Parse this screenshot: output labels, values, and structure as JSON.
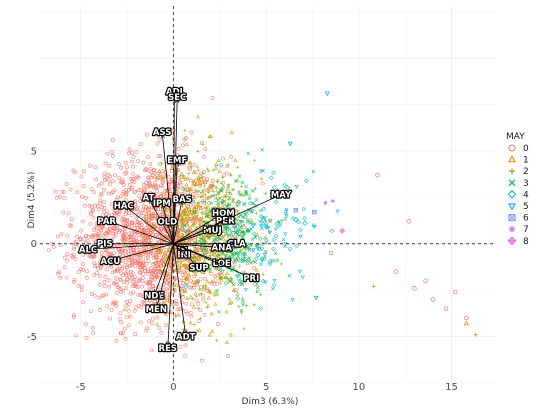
{
  "chart_data": {
    "type": "scatter",
    "subtype": "PCA biplot (individuals + variable loading arrows)",
    "xlabel": "Dim3 (6.3%)",
    "ylabel": "Dim4 (5.2%)",
    "xlim": [
      -7.2,
      17.4
    ],
    "ylim": [
      -7.5,
      12.8
    ],
    "x_ticks": [
      -5,
      0,
      5,
      10,
      15
    ],
    "y_ticks": [
      -5,
      0,
      5
    ],
    "grid": true,
    "zero_lines": "dashed",
    "legend_position": "right",
    "legend": {
      "title": "MAY",
      "entries": [
        {
          "label": "0",
          "color": "#F8766D",
          "shape": "circle"
        },
        {
          "label": "1",
          "color": "#CD9600",
          "shape": "triangle-up"
        },
        {
          "label": "2",
          "color": "#7CAE00",
          "shape": "plus"
        },
        {
          "label": "3",
          "color": "#00BE67",
          "shape": "cross"
        },
        {
          "label": "4",
          "color": "#00BFC4",
          "shape": "diamond"
        },
        {
          "label": "5",
          "color": "#00A9FF",
          "shape": "triangle-down"
        },
        {
          "label": "6",
          "color": "#8494FF",
          "shape": "square-cross"
        },
        {
          "label": "7",
          "color": "#C77CFF",
          "shape": "star"
        },
        {
          "label": "8",
          "color": "#FF61CC",
          "shape": "diamond-plus"
        }
      ]
    },
    "point_clouds": [
      {
        "group": "0",
        "center": [
          -1.2,
          0.3
        ],
        "sd": [
          2.0,
          2.2
        ],
        "count": 1500
      },
      {
        "group": "1",
        "center": [
          1.2,
          0.5
        ],
        "sd": [
          1.3,
          2.2
        ],
        "count": 380
      },
      {
        "group": "2",
        "center": [
          2.2,
          0.6
        ],
        "sd": [
          1.4,
          2.0
        ],
        "count": 360
      },
      {
        "group": "3",
        "center": [
          3.2,
          0.4
        ],
        "sd": [
          1.2,
          1.6
        ],
        "count": 220
      },
      {
        "group": "4",
        "center": [
          4.6,
          0.4
        ],
        "sd": [
          1.3,
          1.6
        ],
        "count": 70
      },
      {
        "group": "5",
        "center": [
          5.5,
          0.5
        ],
        "sd": [
          1.5,
          1.7
        ],
        "count": 30
      }
    ],
    "outlier_points": [
      {
        "group": "0",
        "x": 12.0,
        "y": -1.5
      },
      {
        "group": "0",
        "x": 13.0,
        "y": -2.4
      },
      {
        "group": "0",
        "x": 13.6,
        "y": -2.0
      },
      {
        "group": "0",
        "x": 14.0,
        "y": -3.0
      },
      {
        "group": "0",
        "x": 14.7,
        "y": -3.5
      },
      {
        "group": "0",
        "x": 15.2,
        "y": -2.6
      },
      {
        "group": "0",
        "x": 15.8,
        "y": -4.0
      },
      {
        "group": "0",
        "x": 12.7,
        "y": 1.2
      },
      {
        "group": "0",
        "x": 11.0,
        "y": 3.7
      },
      {
        "group": "0",
        "x": 8.5,
        "y": -0.5
      },
      {
        "group": "1",
        "x": 15.8,
        "y": -4.3
      },
      {
        "group": "2",
        "x": 16.3,
        "y": -4.9
      },
      {
        "group": "2",
        "x": 10.8,
        "y": -2.3
      },
      {
        "group": "4",
        "x": 6.6,
        "y": 1.3
      },
      {
        "group": "4",
        "x": 7.1,
        "y": 1.1
      },
      {
        "group": "5",
        "x": 6.3,
        "y": 5.4
      },
      {
        "group": "5",
        "x": 8.3,
        "y": 8.1
      },
      {
        "group": "5",
        "x": 7.7,
        "y": -2.9
      },
      {
        "group": "6",
        "x": 6.6,
        "y": 1.8
      },
      {
        "group": "6",
        "x": 7.6,
        "y": 1.7
      },
      {
        "group": "7",
        "x": 8.2,
        "y": 2.2
      },
      {
        "group": "7",
        "x": 8.6,
        "y": 2.3
      },
      {
        "group": "8",
        "x": 9.1,
        "y": 0.7
      }
    ],
    "variables": [
      {
        "name": "ADJ",
        "x": 0.05,
        "y": 8.1
      },
      {
        "name": "SEC",
        "x": 0.2,
        "y": 7.8
      },
      {
        "name": "ASS",
        "x": -0.6,
        "y": 5.9
      },
      {
        "name": "EMF",
        "x": 0.2,
        "y": 4.4
      },
      {
        "name": "BAS",
        "x": 0.45,
        "y": 2.3
      },
      {
        "name": "AT",
        "x": -1.3,
        "y": 2.4
      },
      {
        "name": "IPM",
        "x": -0.6,
        "y": 2.1
      },
      {
        "name": "HAC",
        "x": -2.6,
        "y": 2.0
      },
      {
        "name": "OLD",
        "x": -0.3,
        "y": 1.1
      },
      {
        "name": "PAR",
        "x": -3.5,
        "y": 1.2
      },
      {
        "name": "HOM",
        "x": 2.6,
        "y": 1.6
      },
      {
        "name": "PER",
        "x": 2.7,
        "y": 1.2
      },
      {
        "name": "MUJ",
        "x": 2.0,
        "y": 0.7
      },
      {
        "name": "MAY",
        "x": 5.7,
        "y": 2.6
      },
      {
        "name": "CLA",
        "x": 3.3,
        "y": 0.0
      },
      {
        "name": "ANA",
        "x": 2.5,
        "y": -0.2
      },
      {
        "name": "IN",
        "x": 0.4,
        "y": -0.3
      },
      {
        "name": "INI",
        "x": 0.5,
        "y": -0.5
      },
      {
        "name": "LOE",
        "x": 2.5,
        "y": -1.0
      },
      {
        "name": "SUP",
        "x": 1.3,
        "y": -1.2
      },
      {
        "name": "PRI",
        "x": 4.1,
        "y": -1.8
      },
      {
        "name": "ALC",
        "x": -4.5,
        "y": -0.3
      },
      {
        "name": "PIS",
        "x": -3.6,
        "y": 0.0
      },
      {
        "name": "ACU",
        "x": -3.3,
        "y": -0.9
      },
      {
        "name": "NDE",
        "x": -1.0,
        "y": -2.7
      },
      {
        "name": "MEN",
        "x": -0.9,
        "y": -3.4
      },
      {
        "name": "ADT",
        "x": 0.65,
        "y": -4.9
      },
      {
        "name": "RES",
        "x": -0.3,
        "y": -5.5
      }
    ]
  }
}
